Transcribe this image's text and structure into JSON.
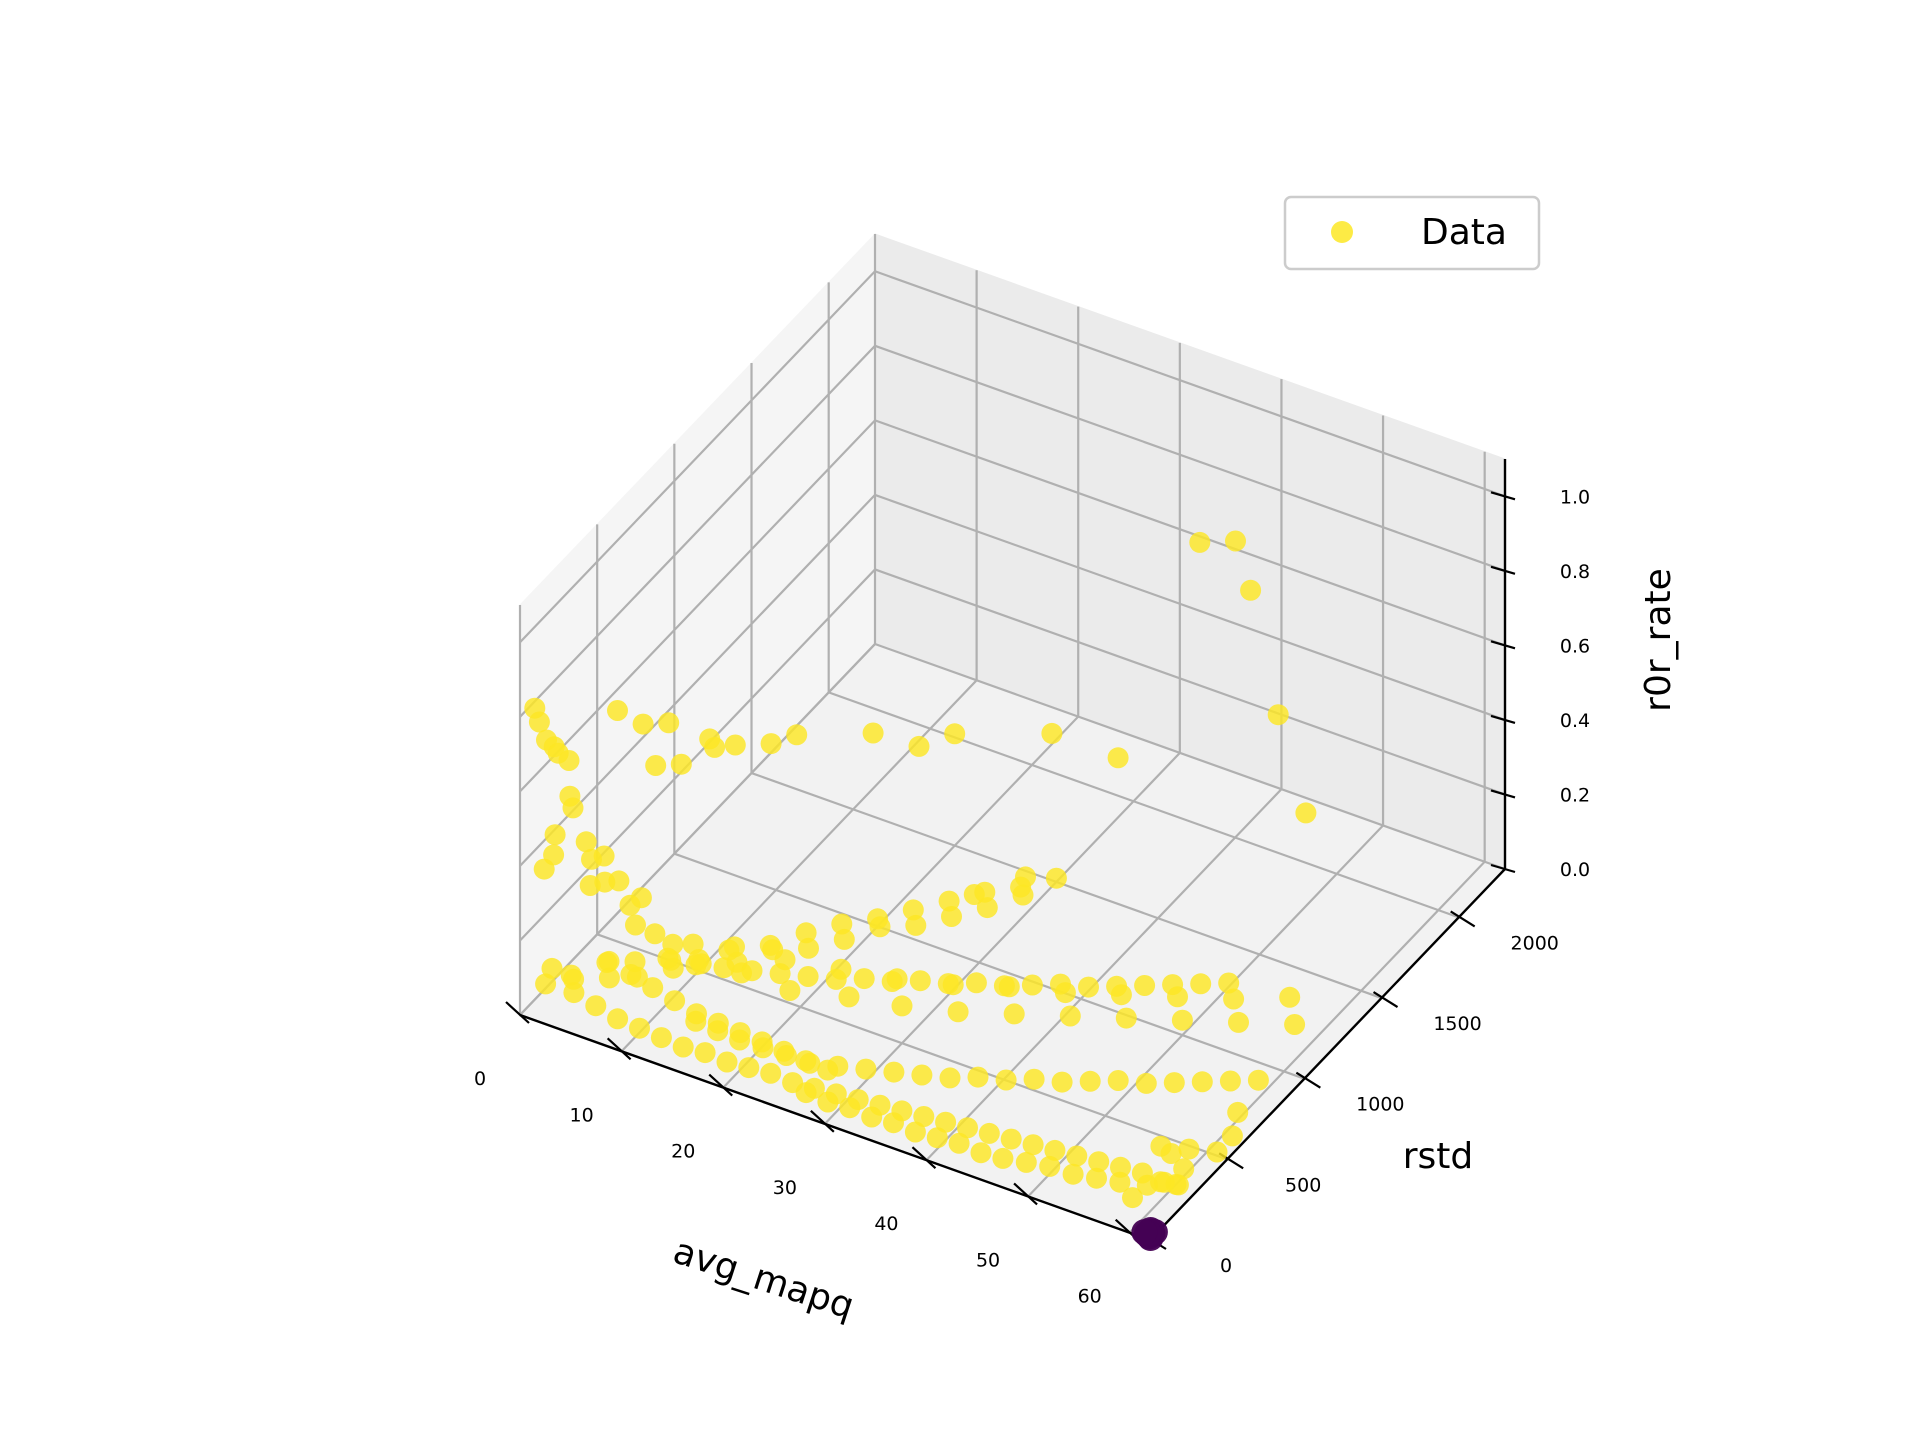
{
  "chart_data": {
    "type": "scatter",
    "projection": "3d",
    "xlabel": "avg_mapq",
    "ylabel": "rstd",
    "zlabel": "r0r_rate",
    "xlim": [
      0,
      62
    ],
    "ylim": [
      0,
      2300
    ],
    "zlim": [
      0,
      1.1
    ],
    "x_ticks": [
      "0",
      "10",
      "20",
      "30",
      "40",
      "50",
      "60"
    ],
    "y_ticks": [
      "0",
      "500",
      "1000",
      "1500",
      "2000"
    ],
    "z_ticks": [
      "0.0",
      "0.2",
      "0.4",
      "0.6",
      "0.8",
      "1.0"
    ],
    "grid": true,
    "legend": {
      "position": "top-right",
      "entries": [
        {
          "label": "Data",
          "color": "#fde725"
        }
      ]
    },
    "colors": {
      "primary": "#fde725",
      "secondary": "#440154"
    },
    "series": [
      {
        "name": "Data",
        "color": "#fde725",
        "points": [
          [
            1,
            30,
            0.82
          ],
          [
            1,
            60,
            0.77
          ],
          [
            2,
            40,
            0.74
          ],
          [
            2,
            90,
            0.7
          ],
          [
            3,
            50,
            0.71
          ],
          [
            3,
            120,
            0.66
          ],
          [
            4,
            60,
            0.6
          ],
          [
            4,
            80,
            0.56
          ],
          [
            3,
            30,
            0.5
          ],
          [
            5,
            100,
            0.47
          ],
          [
            6,
            150,
            0.42
          ],
          [
            2,
            25,
            0.4
          ],
          [
            4,
            200,
            0.37
          ],
          [
            7,
            180,
            0.35
          ],
          [
            5,
            220,
            0.31
          ],
          [
            8,
            260,
            0.28
          ],
          [
            3,
            20,
            0.45
          ],
          [
            6,
            60,
            0.38
          ],
          [
            9,
            120,
            0.33
          ],
          [
            10,
            90,
            0.3
          ],
          [
            11,
            150,
            0.26
          ],
          [
            12,
            200,
            0.22
          ],
          [
            2,
            500,
            0.62
          ],
          [
            3,
            600,
            0.55
          ],
          [
            4,
            700,
            0.52
          ],
          [
            5,
            550,
            0.48
          ],
          [
            6,
            650,
            0.45
          ],
          [
            7,
            800,
            0.44
          ],
          [
            5,
            900,
            0.4
          ],
          [
            6,
            1000,
            0.35
          ],
          [
            8,
            1100,
            0.33
          ],
          [
            9,
            1200,
            0.32
          ],
          [
            15,
            1300,
            0.34
          ],
          [
            20,
            1500,
            0.3
          ],
          [
            18,
            1400,
            0.29
          ],
          [
            25,
            1800,
            0.22
          ],
          [
            30,
            1900,
            0.16
          ],
          [
            35,
            2100,
            0.7
          ],
          [
            37,
            2200,
            0.68
          ],
          [
            40,
            2100,
            0.62
          ],
          [
            45,
            1950,
            0.4
          ],
          [
            50,
            1800,
            0.25
          ],
          [
            30,
            1300,
            0.1
          ],
          [
            28,
            1100,
            0.12
          ],
          [
            14,
            200,
            0.24
          ],
          [
            16,
            300,
            0.2
          ],
          [
            18,
            250,
            0.18
          ],
          [
            20,
            400,
            0.17
          ],
          [
            22,
            300,
            0.15
          ],
          [
            24,
            500,
            0.14
          ],
          [
            26,
            420,
            0.12
          ],
          [
            28,
            600,
            0.11
          ],
          [
            30,
            500,
            0.1
          ],
          [
            32,
            700,
            0.09
          ],
          [
            34,
            600,
            0.08
          ],
          [
            36,
            800,
            0.08
          ],
          [
            38,
            700,
            0.07
          ],
          [
            40,
            900,
            0.06
          ],
          [
            42,
            800,
            0.06
          ],
          [
            44,
            1000,
            0.05
          ],
          [
            46,
            900,
            0.05
          ],
          [
            48,
            1100,
            0.04
          ],
          [
            50,
            1000,
            0.04
          ],
          [
            52,
            1200,
            0.03
          ],
          [
            54,
            1100,
            0.03
          ],
          [
            56,
            1300,
            0.03
          ],
          [
            58,
            1200,
            0.02
          ],
          [
            1,
            100,
            0.05
          ],
          [
            2,
            200,
            0.04
          ],
          [
            3,
            150,
            0.06
          ],
          [
            4,
            300,
            0.05
          ],
          [
            5,
            250,
            0.04
          ],
          [
            6,
            350,
            0.05
          ],
          [
            7,
            300,
            0.04
          ],
          [
            8,
            450,
            0.03
          ],
          [
            9,
            400,
            0.04
          ],
          [
            10,
            500,
            0.03
          ],
          [
            11,
            450,
            0.05
          ],
          [
            12,
            600,
            0.04
          ],
          [
            13,
            550,
            0.03
          ],
          [
            14,
            700,
            0.02
          ],
          [
            15,
            650,
            0.04
          ],
          [
            16,
            800,
            0.03
          ],
          [
            17,
            750,
            0.02
          ],
          [
            18,
            900,
            0.03
          ],
          [
            19,
            850,
            0.02
          ],
          [
            20,
            1000,
            0.02
          ],
          [
            21,
            950,
            0.03
          ],
          [
            22,
            1100,
            0.02
          ],
          [
            23,
            1050,
            0.01
          ],
          [
            24,
            1200,
            0.02
          ],
          [
            25,
            1150,
            0.01
          ],
          [
            26,
            1300,
            0.02
          ],
          [
            27,
            1250,
            0.01
          ],
          [
            28,
            1400,
            0.01
          ],
          [
            29,
            1350,
            0.02
          ],
          [
            30,
            1500,
            0.01
          ],
          [
            3,
            10,
            0.15
          ],
          [
            5,
            20,
            0.1
          ],
          [
            7,
            30,
            0.08
          ],
          [
            9,
            40,
            0.06
          ],
          [
            11,
            50,
            0.05
          ],
          [
            13,
            60,
            0.04
          ],
          [
            15,
            70,
            0.03
          ],
          [
            17,
            80,
            0.03
          ],
          [
            19,
            90,
            0.02
          ],
          [
            21,
            100,
            0.02
          ],
          [
            23,
            110,
            0.02
          ],
          [
            25,
            120,
            0.01
          ],
          [
            27,
            130,
            0.01
          ],
          [
            29,
            140,
            0.01
          ],
          [
            31,
            150,
            0.01
          ],
          [
            33,
            160,
            0.01
          ],
          [
            35,
            170,
            0.01
          ],
          [
            37,
            180,
            0.01
          ],
          [
            39,
            190,
            0.01
          ],
          [
            41,
            200,
            0.01
          ],
          [
            43,
            210,
            0.01
          ],
          [
            45,
            220,
            0.01
          ],
          [
            47,
            230,
            0.01
          ],
          [
            49,
            240,
            0.01
          ],
          [
            51,
            250,
            0.01
          ],
          [
            53,
            260,
            0.01
          ],
          [
            55,
            270,
            0.01
          ],
          [
            57,
            280,
            0.01
          ],
          [
            59,
            290,
            0.0
          ],
          [
            60,
            300,
            0.0
          ],
          [
            58,
            150,
            0.01
          ],
          [
            56,
            200,
            0.01
          ],
          [
            54,
            180,
            0.01
          ],
          [
            52,
            160,
            0.01
          ],
          [
            50,
            140,
            0.02
          ],
          [
            48,
            120,
            0.02
          ],
          [
            46,
            100,
            0.02
          ],
          [
            44,
            90,
            0.02
          ],
          [
            42,
            80,
            0.03
          ],
          [
            40,
            70,
            0.03
          ],
          [
            38,
            60,
            0.03
          ],
          [
            36,
            50,
            0.04
          ],
          [
            34,
            40,
            0.04
          ],
          [
            32,
            30,
            0.05
          ],
          [
            30,
            20,
            0.05
          ],
          [
            28,
            10,
            0.06
          ],
          [
            35,
            300,
            0.05
          ],
          [
            37,
            350,
            0.04
          ],
          [
            39,
            400,
            0.04
          ],
          [
            41,
            450,
            0.03
          ],
          [
            43,
            500,
            0.03
          ],
          [
            45,
            550,
            0.02
          ],
          [
            47,
            600,
            0.02
          ],
          [
            49,
            650,
            0.02
          ],
          [
            51,
            700,
            0.01
          ],
          [
            53,
            750,
            0.01
          ],
          [
            55,
            800,
            0.01
          ],
          [
            57,
            850,
            0.01
          ],
          [
            59,
            900,
            0.01
          ],
          [
            33,
            250,
            0.06
          ],
          [
            31,
            200,
            0.07
          ],
          [
            29,
            150,
            0.08
          ],
          [
            27,
            100,
            0.09
          ],
          [
            25,
            80,
            0.1
          ],
          [
            23,
            60,
            0.11
          ],
          [
            21,
            40,
            0.12
          ],
          [
            19,
            30,
            0.13
          ],
          [
            17,
            20,
            0.14
          ],
          [
            10,
            300,
            0.12
          ],
          [
            12,
            350,
            0.1
          ],
          [
            14,
            400,
            0.09
          ],
          [
            16,
            450,
            0.08
          ],
          [
            18,
            500,
            0.07
          ],
          [
            20,
            550,
            0.06
          ],
          [
            22,
            600,
            0.05
          ],
          [
            24,
            650,
            0.05
          ],
          [
            26,
            700,
            0.04
          ],
          [
            28,
            750,
            0.04
          ],
          [
            30,
            800,
            0.03
          ],
          [
            32,
            850,
            0.03
          ],
          [
            34,
            900,
            0.02
          ],
          [
            36,
            950,
            0.02
          ],
          [
            38,
            1000,
            0.02
          ],
          [
            40,
            1050,
            0.01
          ],
          [
            42,
            1100,
            0.01
          ],
          [
            44,
            1150,
            0.01
          ],
          [
            46,
            1200,
            0.01
          ],
          [
            48,
            1250,
            0.01
          ],
          [
            50,
            1300,
            0.01
          ],
          [
            8,
            50,
            0.2
          ],
          [
            10,
            60,
            0.18
          ],
          [
            12,
            70,
            0.16
          ],
          [
            14,
            80,
            0.14
          ],
          [
            16,
            90,
            0.12
          ],
          [
            18,
            100,
            0.11
          ],
          [
            20,
            110,
            0.1
          ],
          [
            22,
            120,
            0.09
          ],
          [
            24,
            130,
            0.08
          ],
          [
            26,
            140,
            0.07
          ],
          [
            28,
            150,
            0.06
          ],
          [
            57,
            400,
            0.03
          ],
          [
            59,
            450,
            0.02
          ],
          [
            61,
            500,
            0.01
          ],
          [
            60,
            350,
            0.02
          ],
          [
            61,
            250,
            0.03
          ],
          [
            60,
            200,
            0.05
          ],
          [
            59,
            180,
            0.04
          ],
          [
            58,
            400,
            0.02
          ],
          [
            61,
            600,
            0.01
          ],
          [
            60,
            700,
            0.02
          ]
        ]
      },
      {
        "name": "",
        "color": "#440154",
        "points": [
          [
            61.5,
            20,
            0.0
          ],
          [
            61.6,
            30,
            0.01
          ],
          [
            61.7,
            15,
            0.0
          ],
          [
            61.8,
            25,
            0.01
          ],
          [
            61.9,
            10,
            0.0
          ],
          [
            61.5,
            40,
            0.0
          ],
          [
            61.6,
            5,
            0.01
          ],
          [
            61.7,
            35,
            0.0
          ],
          [
            61.8,
            45,
            0.0
          ],
          [
            61.9,
            20,
            0.01
          ],
          [
            61.4,
            30,
            0.0
          ],
          [
            61.3,
            10,
            0.01
          ]
        ]
      }
    ]
  }
}
